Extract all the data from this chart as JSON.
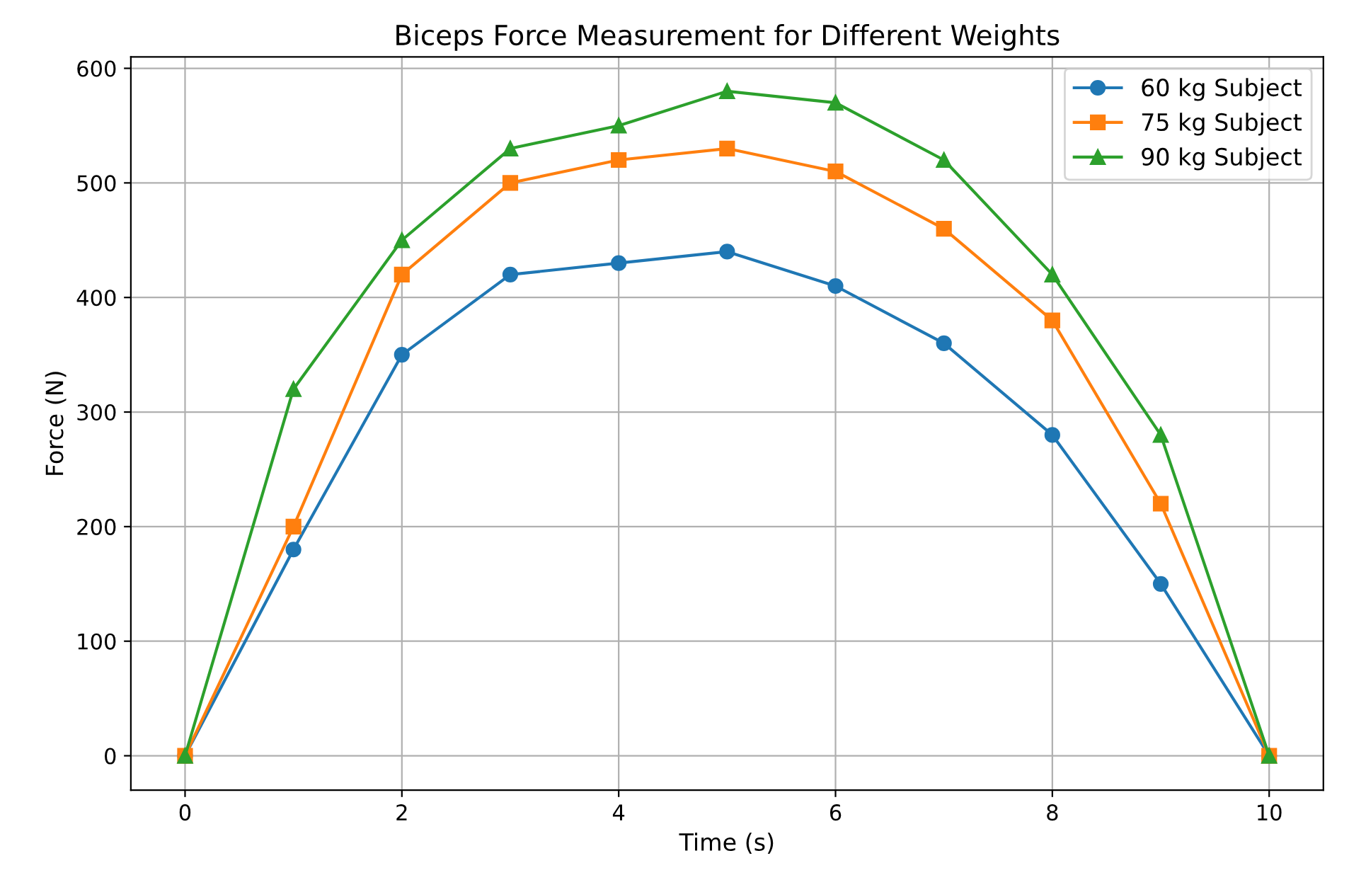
{
  "chart_data": {
    "type": "line",
    "title": "Biceps Force Measurement for Different Weights",
    "xlabel": "Time (s)",
    "ylabel": "Force (N)",
    "x": [
      0,
      1,
      2,
      3,
      4,
      5,
      6,
      7,
      8,
      9,
      10
    ],
    "series": [
      {
        "name": "60 kg Subject",
        "color": "#1f77b4",
        "marker": "circle",
        "values": [
          0,
          180,
          350,
          420,
          430,
          440,
          410,
          360,
          280,
          150,
          0
        ]
      },
      {
        "name": "75 kg Subject",
        "color": "#ff7f0e",
        "marker": "square",
        "values": [
          0,
          200,
          420,
          500,
          520,
          530,
          510,
          460,
          380,
          220,
          0
        ]
      },
      {
        "name": "90 kg Subject",
        "color": "#2ca02c",
        "marker": "triangle",
        "values": [
          0,
          320,
          450,
          530,
          550,
          580,
          570,
          520,
          420,
          280,
          0
        ]
      }
    ],
    "xlim": [
      -0.5,
      10.5
    ],
    "ylim": [
      -30,
      610
    ],
    "xticks": [
      0,
      2,
      4,
      6,
      8,
      10
    ],
    "yticks": [
      0,
      100,
      200,
      300,
      400,
      500,
      600
    ],
    "grid": true,
    "legend": "top right",
    "line_style": "solid"
  }
}
